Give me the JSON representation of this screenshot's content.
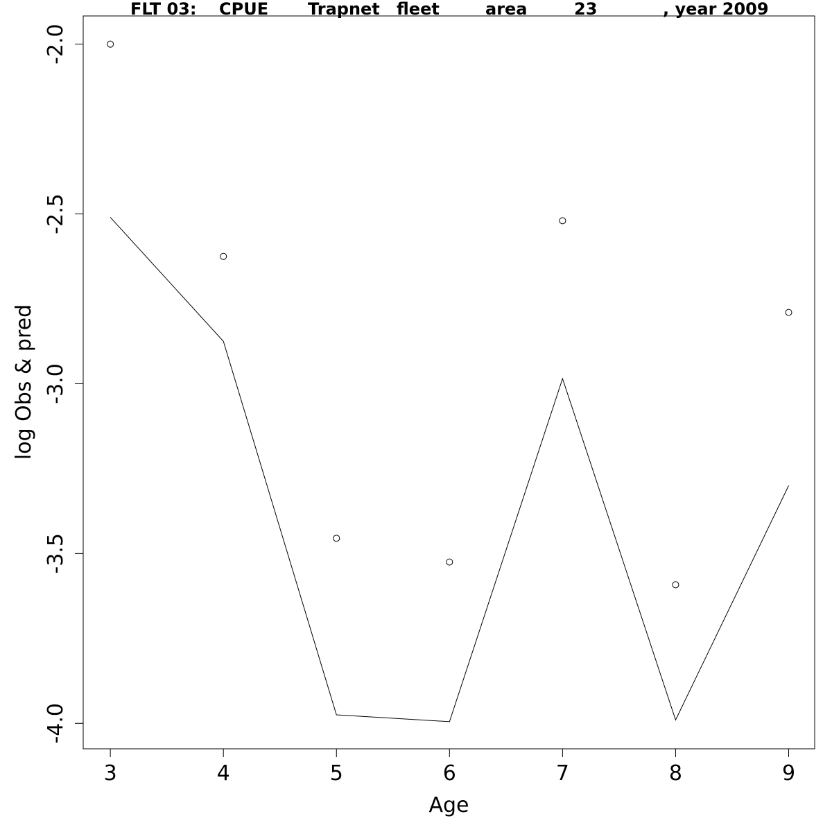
{
  "chart_data": {
    "type": "line",
    "title_parts": [
      "FLT 03:",
      "CPUE",
      "Trapnet",
      "fleet",
      "area",
      "23",
      ", year 2009"
    ],
    "xlabel": "Age",
    "ylabel": "log Obs & pred",
    "x": [
      3,
      4,
      5,
      6,
      7,
      8,
      9
    ],
    "x_ticks": [
      "3",
      "4",
      "5",
      "6",
      "7",
      "8",
      "9"
    ],
    "y_ticks": [
      "-2.0",
      "-2.5",
      "-3.0",
      "-3.5",
      "-4.0"
    ],
    "y_tick_values": [
      -2.0,
      -2.5,
      -3.0,
      -3.5,
      -4.0
    ],
    "xlim": [
      2.76,
      9.23
    ],
    "ylim": [
      -4.075,
      -1.917
    ],
    "series": [
      {
        "values": [
          -2.0,
          -2.625,
          -3.455,
          -3.525,
          -2.52,
          -3.592,
          -2.79
        ],
        "style": "points"
      },
      {
        "values": [
          -2.51,
          -2.875,
          -3.975,
          -3.995,
          -2.985,
          -3.99,
          -3.3
        ],
        "style": "line"
      }
    ],
    "grid": false,
    "colors": {
      "points": "#000000",
      "line": "#000000",
      "axis": "#000000"
    }
  }
}
